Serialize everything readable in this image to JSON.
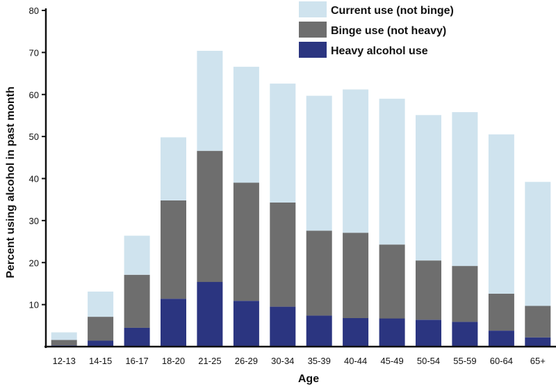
{
  "chart_data": {
    "type": "bar",
    "stacked": true,
    "xlabel": "Age",
    "ylabel": "Percent using alcohol in past month",
    "ylim": [
      0,
      80
    ],
    "yticks": [
      10,
      20,
      30,
      40,
      50,
      60,
      70,
      80
    ],
    "categories": [
      "12-13",
      "14-15",
      "16-17",
      "18-20",
      "21-25",
      "26-29",
      "30-34",
      "35-39",
      "40-44",
      "45-49",
      "50-54",
      "55-59",
      "60-64",
      "65+"
    ],
    "totals": [
      3.4,
      13.1,
      26.4,
      49.8,
      70.4,
      66.6,
      62.6,
      59.7,
      61.2,
      59.0,
      55.1,
      55.8,
      50.5,
      39.2
    ],
    "series": [
      {
        "name": "Heavy alcohol use",
        "color": "#2b3580",
        "values": [
          0.3,
          1.4,
          4.5,
          11.4,
          15.4,
          10.9,
          9.5,
          7.4,
          6.8,
          6.7,
          6.4,
          5.9,
          3.8,
          2.2
        ]
      },
      {
        "name": "Binge use (not heavy)",
        "color": "#6e6e6e",
        "values": [
          1.3,
          5.7,
          12.6,
          23.4,
          31.2,
          28.1,
          24.8,
          20.2,
          20.3,
          17.6,
          14.1,
          13.3,
          8.8,
          7.5
        ]
      },
      {
        "name": "Current use (not binge)",
        "color": "#cfe3ee",
        "values": [
          1.8,
          6.0,
          9.3,
          15.0,
          23.8,
          27.6,
          28.3,
          32.1,
          34.1,
          34.7,
          34.6,
          36.6,
          37.9,
          29.5
        ]
      }
    ],
    "legend": {
      "placement": "top-right",
      "order": [
        "Current use (not binge)",
        "Binge use (not heavy)",
        "Heavy alcohol use"
      ]
    },
    "grid": false
  }
}
